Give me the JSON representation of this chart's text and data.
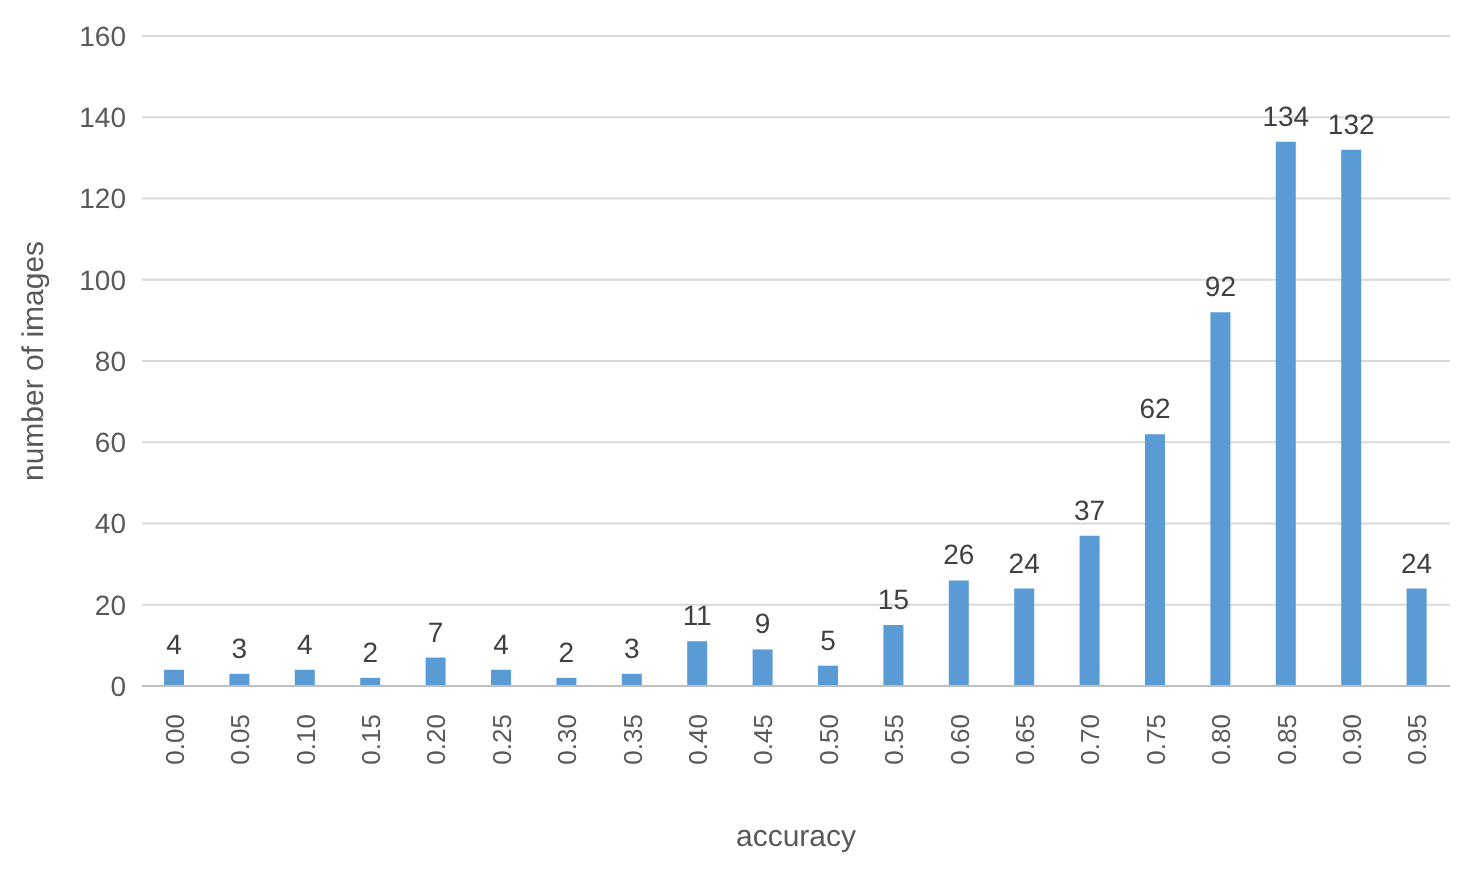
{
  "chart_data": {
    "type": "bar",
    "xlabel": "accuracy",
    "ylabel": "number of images",
    "categories": [
      "0.00",
      "0.05",
      "0.10",
      "0.15",
      "0.20",
      "0.25",
      "0.30",
      "0.35",
      "0.40",
      "0.45",
      "0.50",
      "0.55",
      "0.60",
      "0.65",
      "0.70",
      "0.75",
      "0.80",
      "0.85",
      "0.90",
      "0.95"
    ],
    "values": [
      4,
      3,
      4,
      2,
      7,
      4,
      2,
      3,
      11,
      9,
      5,
      15,
      26,
      24,
      37,
      62,
      92,
      134,
      132,
      24
    ],
    "color": "#5b9bd5",
    "ylim": [
      0,
      160
    ],
    "yticks": [
      0,
      20,
      40,
      60,
      80,
      100,
      120,
      140,
      160
    ],
    "grid": "y",
    "data_labels": true
  }
}
